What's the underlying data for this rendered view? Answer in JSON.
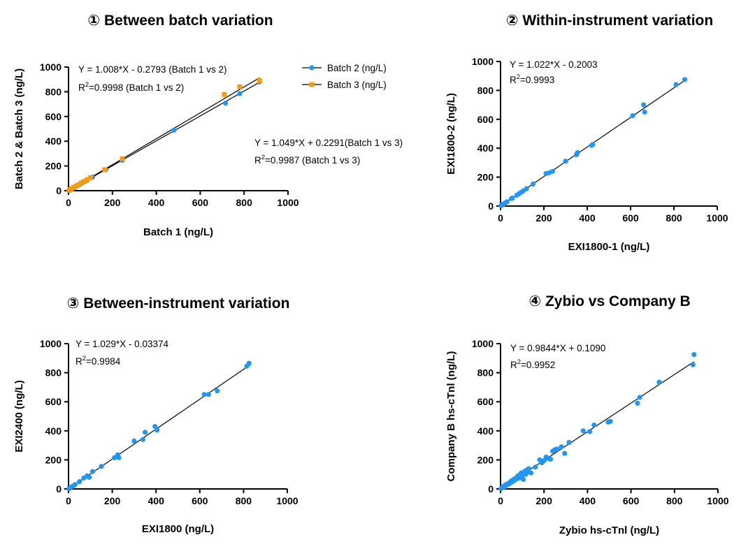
{
  "chart_data": [
    {
      "type": "scatter",
      "title": "① Between batch variation",
      "xlabel": "Batch 1 (ng/L)",
      "ylabel": "Batch 2 & Batch 3 (ng/L)",
      "xlim": [
        0,
        1000
      ],
      "ylim": [
        0,
        1000
      ],
      "xticks": [
        0,
        200,
        400,
        600,
        800,
        1000
      ],
      "yticks": [
        0,
        200,
        400,
        600,
        800,
        1000
      ],
      "legend_position": "top-right",
      "annotations": [
        {
          "eq": "Y = 1.008*X - 0.2793 (Batch 1 vs 2)",
          "r2_prefix": "R",
          "r2_sup": "2",
          "r2_rest": "=0.9998 (Batch 1 vs 2)"
        },
        {
          "eq": "Y = 1.049*X + 0.2291(Batch 1 vs 3)",
          "r2_prefix": "R",
          "r2_sup": "2",
          "r2_rest": "=0.9987 (Batch 1 vs 3)"
        }
      ],
      "series": [
        {
          "name": "Batch 2 (ng/L)",
          "color": "#2196F3",
          "marker": "circle",
          "fit": {
            "slope": 1.008,
            "intercept": -0.2793,
            "x_range": [
              0,
              870
            ]
          },
          "points": [
            [
              2,
              2
            ],
            [
              5,
              5
            ],
            [
              10,
              10
            ],
            [
              15,
              15
            ],
            [
              20,
              20
            ],
            [
              25,
              26
            ],
            [
              32,
              31
            ],
            [
              40,
              40
            ],
            [
              48,
              47
            ],
            [
              55,
              55
            ],
            [
              62,
              62
            ],
            [
              70,
              70
            ],
            [
              80,
              80
            ],
            [
              105,
              106
            ],
            [
              110,
              110
            ],
            [
              170,
              170
            ],
            [
              245,
              245
            ],
            [
              480,
              490
            ],
            [
              715,
              708
            ],
            [
              780,
              785
            ],
            [
              870,
              880
            ]
          ]
        },
        {
          "name": "Batch 3 (ng/L)",
          "color": "#F39C12",
          "marker": "square",
          "fit": {
            "slope": 1.049,
            "intercept": 0.2291,
            "x_range": [
              0,
              870
            ]
          },
          "points": [
            [
              3,
              3
            ],
            [
              8,
              9
            ],
            [
              15,
              17
            ],
            [
              25,
              27
            ],
            [
              35,
              38
            ],
            [
              45,
              47
            ],
            [
              58,
              62
            ],
            [
              70,
              74
            ],
            [
              85,
              88
            ],
            [
              100,
              106
            ],
            [
              165,
              170
            ],
            [
              245,
              258
            ],
            [
              710,
              778
            ],
            [
              780,
              840
            ],
            [
              870,
              890
            ]
          ]
        }
      ]
    },
    {
      "type": "scatter",
      "title": "② Within-instrument variation",
      "xlabel": "EXI1800-1 (ng/L)",
      "ylabel": "EXI1800-2 (ng/L)",
      "xlim": [
        0,
        1000
      ],
      "ylim": [
        0,
        1000
      ],
      "xticks": [
        0,
        200,
        400,
        600,
        800,
        1000
      ],
      "yticks": [
        0,
        200,
        400,
        600,
        800,
        1000
      ],
      "annotations": [
        {
          "eq": "Y = 1.022*X - 0.2003",
          "r2_prefix": "R",
          "r2_sup": "2",
          "r2_rest": "=0.9993"
        }
      ],
      "series": [
        {
          "color": "#2196F3",
          "marker": "circle",
          "fit": {
            "slope": 1.022,
            "intercept": -0.2003,
            "x_range": [
              0,
              850
            ]
          },
          "points": [
            [
              2,
              2
            ],
            [
              5,
              5
            ],
            [
              10,
              10
            ],
            [
              15,
              15
            ],
            [
              22,
              22
            ],
            [
              30,
              30
            ],
            [
              50,
              52
            ],
            [
              55,
              55
            ],
            [
              75,
              75
            ],
            [
              85,
              85
            ],
            [
              95,
              95
            ],
            [
              105,
              105
            ],
            [
              120,
              120
            ],
            [
              150,
              152
            ],
            [
              210,
              225
            ],
            [
              225,
              230
            ],
            [
              240,
              240
            ],
            [
              300,
              310
            ],
            [
              350,
              355
            ],
            [
              355,
              370
            ],
            [
              420,
              420
            ],
            [
              425,
              425
            ],
            [
              610,
              625
            ],
            [
              660,
              700
            ],
            [
              665,
              650
            ],
            [
              810,
              840
            ],
            [
              850,
              875
            ]
          ]
        }
      ]
    },
    {
      "type": "scatter",
      "title": "③ Between-instrument variation",
      "xlabel": "EXI1800 (ng/L)",
      "ylabel": "EXI2400 (ng/L)",
      "xlim": [
        0,
        1000
      ],
      "ylim": [
        0,
        1000
      ],
      "xticks": [
        0,
        200,
        400,
        600,
        800,
        1000
      ],
      "yticks": [
        0,
        200,
        400,
        600,
        800,
        1000
      ],
      "annotations": [
        {
          "eq": "Y = 1.029*X - 0.03374",
          "r2_prefix": "R",
          "r2_sup": "2",
          "r2_rest": "=0.9984"
        }
      ],
      "series": [
        {
          "color": "#2196F3",
          "marker": "circle",
          "fit": {
            "slope": 1.029,
            "intercept": -0.03374,
            "x_range": [
              0,
              830
            ]
          },
          "points": [
            [
              2,
              2
            ],
            [
              5,
              5
            ],
            [
              10,
              10
            ],
            [
              20,
              20
            ],
            [
              30,
              30
            ],
            [
              50,
              50
            ],
            [
              70,
              75
            ],
            [
              85,
              90
            ],
            [
              95,
              80
            ],
            [
              110,
              120
            ],
            [
              150,
              155
            ],
            [
              210,
              215
            ],
            [
              225,
              235
            ],
            [
              230,
              215
            ],
            [
              300,
              330
            ],
            [
              340,
              340
            ],
            [
              350,
              390
            ],
            [
              395,
              430
            ],
            [
              405,
              405
            ],
            [
              620,
              650
            ],
            [
              640,
              650
            ],
            [
              680,
              675
            ],
            [
              815,
              845
            ],
            [
              825,
              865
            ]
          ]
        }
      ]
    },
    {
      "type": "scatter",
      "title": "④ Zybio vs Company B",
      "xlabel": "Zybio hs-cTnl (ng/L)",
      "ylabel": "Company B hs-cTnl (ng/L)",
      "xlim": [
        0,
        1000
      ],
      "ylim": [
        0,
        1000
      ],
      "xticks": [
        0,
        200,
        400,
        600,
        800,
        1000
      ],
      "yticks": [
        0,
        200,
        400,
        600,
        800,
        1000
      ],
      "annotations": [
        {
          "eq": "Y = 0.9844*X + 0.1090",
          "r2_prefix": "R",
          "r2_sup": "2",
          "r2_rest": "=0.9952"
        }
      ],
      "series": [
        {
          "color": "#2196F3",
          "marker": "circle",
          "fit": {
            "slope": 0.9844,
            "intercept": 0.109,
            "x_range": [
              0,
              890
            ]
          },
          "points": [
            [
              2,
              2
            ],
            [
              5,
              8
            ],
            [
              10,
              10
            ],
            [
              15,
              20
            ],
            [
              20,
              15
            ],
            [
              25,
              30
            ],
            [
              30,
              28
            ],
            [
              35,
              38
            ],
            [
              40,
              35
            ],
            [
              45,
              50
            ],
            [
              50,
              45
            ],
            [
              55,
              60
            ],
            [
              60,
              55
            ],
            [
              65,
              70
            ],
            [
              70,
              65
            ],
            [
              75,
              80
            ],
            [
              80,
              90
            ],
            [
              85,
              75
            ],
            [
              90,
              100
            ],
            [
              95,
              110
            ],
            [
              100,
              95
            ],
            [
              105,
              65
            ],
            [
              110,
              120
            ],
            [
              115,
              100
            ],
            [
              120,
              130
            ],
            [
              125,
              115
            ],
            [
              130,
              140
            ],
            [
              140,
              110
            ],
            [
              160,
              150
            ],
            [
              180,
              200
            ],
            [
              190,
              180
            ],
            [
              200,
              195
            ],
            [
              210,
              220
            ],
            [
              220,
              210
            ],
            [
              230,
              205
            ],
            [
              240,
              260
            ],
            [
              250,
              270
            ],
            [
              260,
              275
            ],
            [
              280,
              290
            ],
            [
              295,
              245
            ],
            [
              315,
              320
            ],
            [
              380,
              400
            ],
            [
              410,
              395
            ],
            [
              430,
              440
            ],
            [
              495,
              460
            ],
            [
              505,
              465
            ],
            [
              630,
              590
            ],
            [
              640,
              630
            ],
            [
              730,
              735
            ],
            [
              885,
              855
            ],
            [
              890,
              925
            ]
          ]
        }
      ]
    }
  ]
}
